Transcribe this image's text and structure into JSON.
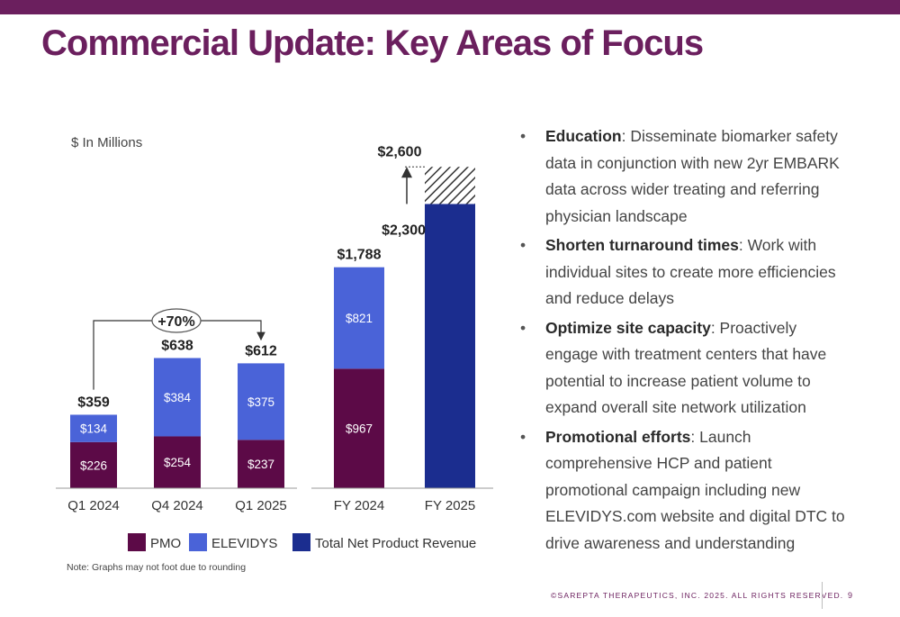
{
  "slide": {
    "title": "Commercial Update: Key Areas of Focus",
    "footer": "©SAREPTA THERAPEUTICS, INC. 2025.  ALL RIGHTS RESERVED.",
    "page_number": "9"
  },
  "bullets": [
    {
      "head": "Education",
      "text": ": Disseminate biomarker safety data in conjunction with new 2yr EMBARK data across wider treating and referring physician landscape"
    },
    {
      "head": "Shorten turnaround times",
      "text": ": Work with individual sites to create more efficiencies and reduce delays"
    },
    {
      "head": "Optimize site capacity",
      "text": ": Proactively engage with treatment centers that have potential to increase patient volume to expand overall site network utilization"
    },
    {
      "head": "Promotional efforts",
      "text": ": Launch comprehensive HCP and patient promotional campaign including new ELEVIDYS.com website and digital DTC to drive awareness and understanding"
    }
  ],
  "chart_data": {
    "type": "bar",
    "stacked": true,
    "unit_label": "$ In Millions",
    "note": "Note: Graphs may not foot due to rounding",
    "colors": {
      "pmo": "#5c0a47",
      "elevidys": "#4a63d8",
      "total": "#1b2d8f",
      "hatch": "#333333"
    },
    "legend": [
      {
        "key": "pmo",
        "label": "PMO"
      },
      {
        "key": "elevidys",
        "label": "ELEVIDYS"
      },
      {
        "key": "total",
        "label": "Total Net Product Revenue"
      }
    ],
    "quarterly": {
      "categories": [
        "Q1 2024",
        "Q4 2024",
        "Q1 2025"
      ],
      "pmo": [
        226,
        254,
        237
      ],
      "elevidys": [
        134,
        384,
        375
      ],
      "pmo_labels": [
        "$226",
        "$254",
        "$237"
      ],
      "elevidys_labels": [
        "$134",
        "$384",
        "$375"
      ],
      "totals": [
        359,
        638,
        612
      ],
      "total_labels": [
        "$359",
        "$638",
        "$612"
      ],
      "growth_label": "+70%"
    },
    "annual": {
      "categories": [
        "FY 2024",
        "FY 2025"
      ],
      "fy2024": {
        "pmo": 967,
        "elevidys": 821,
        "pmo_label": "$967",
        "elevidys_label": "$821",
        "total": 1788,
        "total_label": "$1,788"
      },
      "fy2025": {
        "low": 2300,
        "high": 2600,
        "low_label": "$2,300",
        "high_label": "$2,600"
      }
    },
    "quarterly_ylim": [
      0,
      1000
    ],
    "annual_ylim": [
      0,
      2960
    ]
  }
}
